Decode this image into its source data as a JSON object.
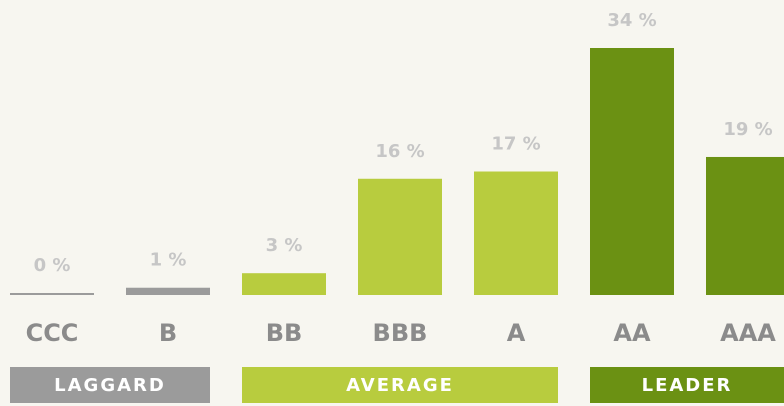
{
  "chart_data": {
    "type": "bar",
    "categories": [
      "CCC",
      "B",
      "BB",
      "BBB",
      "A",
      "AA",
      "AAA"
    ],
    "values": [
      0,
      1,
      3,
      16,
      17,
      34,
      19
    ],
    "value_labels": [
      "0 %",
      "1 %",
      "3 %",
      "16 %",
      "17 %",
      "34 %",
      "19 %"
    ],
    "ylim": [
      0,
      34
    ],
    "groups": [
      {
        "name": "LAGGARD",
        "color": "#9b9b9b",
        "categories": [
          "CCC",
          "B"
        ]
      },
      {
        "name": "AVERAGE",
        "color": "#b8cc3e",
        "categories": [
          "BB",
          "BBB",
          "A"
        ]
      },
      {
        "name": "LEADER",
        "color": "#6b9113",
        "categories": [
          "AA",
          "AAA"
        ]
      }
    ]
  }
}
